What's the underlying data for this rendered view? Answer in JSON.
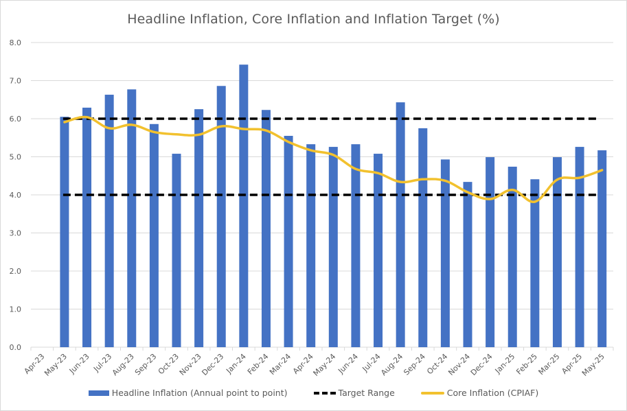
{
  "chart_data": {
    "type": "bar",
    "title": "Headline Inflation, Core Inflation and Inflation Target (%)",
    "xlabel": "",
    "ylabel": "",
    "ylim": [
      0,
      8
    ],
    "yticks": [
      "0.0",
      "1.0",
      "2.0",
      "3.0",
      "4.0",
      "5.0",
      "6.0",
      "7.0",
      "8.0"
    ],
    "grid": true,
    "legend_position": "bottom",
    "categories": [
      "Apr-23",
      "May-23",
      "Jun-23",
      "Jul-23",
      "Aug-23",
      "Sep-23",
      "Oct-23",
      "Nov-23",
      "Dec-23",
      "Jan-24",
      "Feb-24",
      "Mar-24",
      "Apr-24",
      "May-24",
      "Jun-24",
      "Jul-24",
      "Aug-24",
      "Sep-24",
      "Oct-24",
      "Nov-24",
      "Dec-24",
      "Jan-25",
      "Feb-25",
      "Mar-25",
      "Apr-25",
      "May-25"
    ],
    "series": [
      {
        "name": "Headline Inflation (Annual point to point)",
        "type": "bar",
        "color": "#4472c4",
        "values": [
          null,
          6.05,
          6.29,
          6.63,
          6.77,
          5.86,
          5.08,
          6.25,
          6.86,
          7.42,
          6.23,
          5.55,
          5.33,
          5.26,
          5.33,
          5.08,
          6.43,
          5.75,
          4.93,
          4.34,
          4.99,
          4.74,
          4.41,
          4.99,
          5.26,
          5.17
        ]
      },
      {
        "name": "Target Range",
        "type": "dashed-line",
        "color": "#000000",
        "upper": 6.0,
        "lower": 4.0
      },
      {
        "name": "Core Inflation (CPIAF)",
        "type": "line",
        "color": "#f2c12e",
        "values": [
          null,
          5.91,
          6.04,
          5.75,
          5.84,
          5.65,
          5.59,
          5.58,
          5.8,
          5.73,
          5.69,
          5.39,
          5.17,
          5.05,
          4.68,
          4.57,
          4.34,
          4.41,
          4.37,
          4.07,
          3.89,
          4.13,
          3.82,
          4.4,
          4.45,
          4.65
        ]
      }
    ],
    "legend": [
      {
        "label": "Headline Inflation (Annual point to point)",
        "swatch": "bar"
      },
      {
        "label": "Target Range",
        "swatch": "dash"
      },
      {
        "label": "Core Inflation (CPIAF)",
        "swatch": "line"
      }
    ]
  }
}
